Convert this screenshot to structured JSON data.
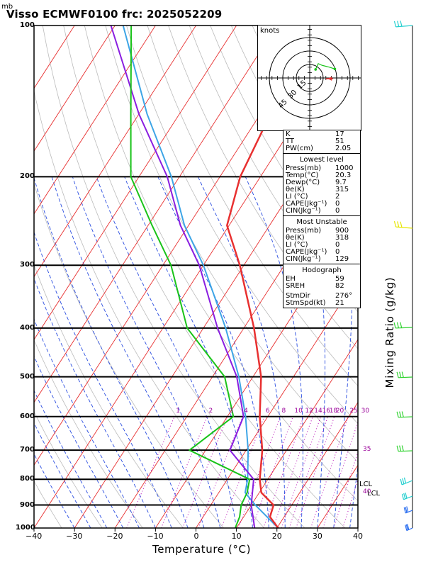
{
  "header": {
    "unit": "mb",
    "title": "Visso ECMWF0100 frc: 2025052209"
  },
  "axes": {
    "x_title": "Temperature (°C)",
    "y_right_title": "Mixing Ratio (g/kg)"
  },
  "chart_data": {
    "type": "skew-t",
    "xlabel": "Temperature (°C)",
    "ylabel": "mb",
    "x_ticks": [
      -40,
      -30,
      -20,
      -10,
      0,
      10,
      20,
      30,
      40
    ],
    "x_tick_labels": [
      "−40",
      "−30",
      "−20",
      "−10",
      "0",
      "10",
      "20",
      "30",
      "40"
    ],
    "pressure_ticks": [
      100,
      200,
      300,
      400,
      500,
      600,
      700,
      800,
      900,
      1000
    ],
    "pressure_tick_labels": [
      "100",
      "200",
      "300",
      "400",
      "500",
      "600",
      "700",
      "800",
      "900",
      "1000"
    ],
    "xlim": [
      -40,
      40
    ],
    "ylim": [
      1000,
      100
    ],
    "mixing_ratio_lines": [
      1,
      2,
      3,
      4,
      6,
      8,
      10,
      12,
      14,
      16,
      18,
      20,
      25,
      30,
      35,
      40
    ],
    "mixing_ratio_labels": [
      "1",
      "2",
      "3",
      "4",
      "6",
      "8",
      "10",
      "12",
      "14",
      "16",
      "18",
      "20",
      "25",
      "30",
      "35",
      "40"
    ],
    "temperature_profile": [
      {
        "p": 1000,
        "t": 20.3
      },
      {
        "p": 950,
        "t": 16.5
      },
      {
        "p": 900,
        "t": 15.5
      },
      {
        "p": 850,
        "t": 10.5
      },
      {
        "p": 800,
        "t": 8.0
      },
      {
        "p": 700,
        "t": 4.0
      },
      {
        "p": 600,
        "t": -2.0
      },
      {
        "p": 500,
        "t": -8.0
      },
      {
        "p": 400,
        "t": -17.5
      },
      {
        "p": 300,
        "t": -31.0
      },
      {
        "p": 250,
        "t": -40.5
      },
      {
        "p": 200,
        "t": -45.0
      },
      {
        "p": 150,
        "t": -47.5
      },
      {
        "p": 100,
        "t": -51.0
      }
    ],
    "dewpoint_profile": [
      {
        "p": 1000,
        "t": 9.7
      },
      {
        "p": 950,
        "t": 9.0
      },
      {
        "p": 900,
        "t": 7.5
      },
      {
        "p": 850,
        "t": 7.0
      },
      {
        "p": 800,
        "t": 5.5
      },
      {
        "p": 700,
        "t": -14.0
      },
      {
        "p": 600,
        "t": -8.5
      },
      {
        "p": 500,
        "t": -17.0
      },
      {
        "p": 400,
        "t": -34.0
      },
      {
        "p": 300,
        "t": -48.0
      },
      {
        "p": 250,
        "t": -59.0
      },
      {
        "p": 200,
        "t": -72.0
      },
      {
        "p": 150,
        "t": -82.0
      },
      {
        "p": 100,
        "t": -96.0
      }
    ],
    "parcel_profile": [
      {
        "p": 1000,
        "t": 20.3
      },
      {
        "p": 900,
        "t": 11.0
      },
      {
        "p": 850,
        "t": 6.5
      },
      {
        "p": 800,
        "t": 5.0
      },
      {
        "p": 700,
        "t": 0.5
      },
      {
        "p": 600,
        "t": -5.5
      },
      {
        "p": 500,
        "t": -13.5
      },
      {
        "p": 400,
        "t": -24.5
      },
      {
        "p": 300,
        "t": -40.0
      },
      {
        "p": 250,
        "t": -51.0
      },
      {
        "p": 200,
        "t": -62.0
      },
      {
        "p": 150,
        "t": -78.0
      },
      {
        "p": 100,
        "t": -98.0
      }
    ],
    "wet_bulb_profile": [
      {
        "p": 1000,
        "t": 14.5
      },
      {
        "p": 900,
        "t": 10.0
      },
      {
        "p": 800,
        "t": 6.5
      },
      {
        "p": 700,
        "t": -4.0
      },
      {
        "p": 600,
        "t": -6.0
      },
      {
        "p": 500,
        "t": -14.0
      },
      {
        "p": 400,
        "t": -26.5
      },
      {
        "p": 300,
        "t": -41.0
      },
      {
        "p": 250,
        "t": -52.0
      },
      {
        "p": 200,
        "t": -63.0
      },
      {
        "p": 150,
        "t": -80.0
      },
      {
        "p": 100,
        "t": -101.0
      }
    ],
    "lcl_labels": [
      "LCL",
      "LCL"
    ],
    "hodograph": {
      "units": "knots",
      "rings": [
        15,
        30,
        45
      ],
      "ring_labels": [
        "15",
        "30",
        "45"
      ]
    }
  },
  "indices": {
    "rows": [
      {
        "k": "K",
        "v": "17"
      },
      {
        "k": "TT",
        "v": "51"
      },
      {
        "k": "PW(cm)",
        "v": "2.05"
      }
    ]
  },
  "lowest_level": {
    "title": "Lowest level",
    "rows": [
      {
        "k": "Press(mb)",
        "v": "1000"
      },
      {
        "k": "Temp(°C)",
        "v": "20.3"
      },
      {
        "k": "Dewp(°C)",
        "v": "9.7"
      },
      {
        "k": "θe(K)",
        "v": "315"
      },
      {
        "k": "LI (°C)",
        "v": "2"
      },
      {
        "k": "CAPE(Jkg⁻¹)",
        "v": "0"
      },
      {
        "k": "CIN(Jkg⁻¹)",
        "v": "0"
      }
    ]
  },
  "most_unstable": {
    "title": "Most Unstable",
    "rows": [
      {
        "k": "Press(mb)",
        "v": "900"
      },
      {
        "k": "θe(K)",
        "v": "318"
      },
      {
        "k": "LI (°C)",
        "v": "0"
      },
      {
        "k": "CAPE(Jkg⁻¹)",
        "v": "0"
      },
      {
        "k": "CIN(Jkg⁻¹)",
        "v": "129"
      }
    ]
  },
  "hodograph_box": {
    "title": "Hodograph",
    "rows": [
      {
        "k": "EH",
        "v": "59"
      },
      {
        "k": "SREH",
        "v": "82"
      },
      {
        "k": "StmDir",
        "v": "276°"
      },
      {
        "k": "StmSpd(kt)",
        "v": "21"
      }
    ]
  },
  "colors": {
    "temperature": "#e83030",
    "dewpoint": "#19c319",
    "parcel": "#3da5e6",
    "wet_bulb": "#8a1ee0",
    "isotherm": "#e83030",
    "dry_adiabat": "#bbbbbb",
    "moist_adiabat": "#2a4de0",
    "mixing_ratio": "#b400b4"
  }
}
